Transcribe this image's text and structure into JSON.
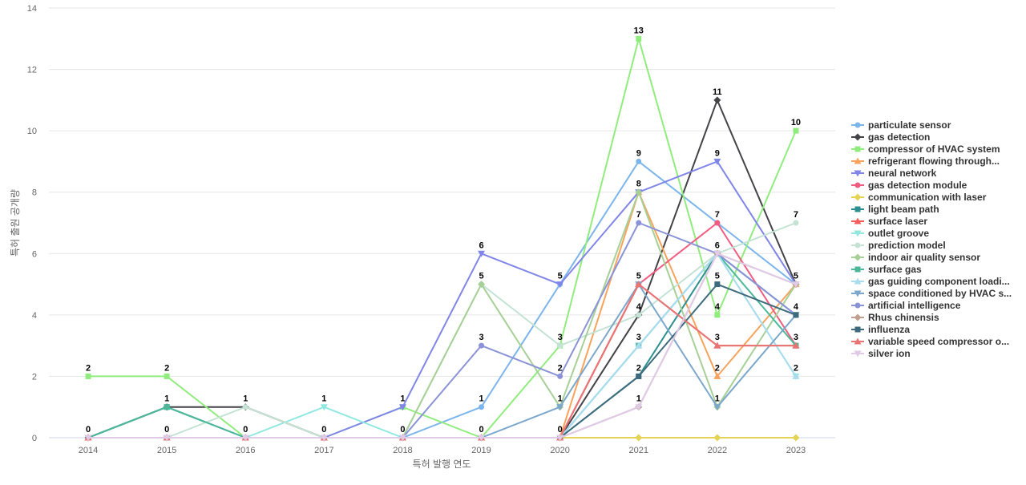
{
  "chart_data": {
    "type": "line",
    "title": "",
    "xlabel": "특허 발행 연도",
    "ylabel": "특허 출원 공개량",
    "ylim": [
      0,
      14
    ],
    "yticks": [
      0,
      2,
      4,
      6,
      8,
      10,
      12,
      14
    ],
    "grid": true,
    "legend_position": "right",
    "categories": [
      "2014",
      "2015",
      "2016",
      "2017",
      "2018",
      "2019",
      "2020",
      "2021",
      "2022",
      "2023"
    ],
    "series": [
      {
        "name": "particulate sensor",
        "color": "#7cb5ec",
        "marker": "circle",
        "values": [
          0,
          0,
          0,
          0,
          0,
          1,
          5,
          9,
          7,
          5
        ]
      },
      {
        "name": "gas detection",
        "color": "#434348",
        "marker": "diamond",
        "values": [
          0,
          1,
          1,
          0,
          0,
          0,
          0,
          4,
          11,
          5
        ]
      },
      {
        "name": "compressor of HVAC system",
        "color": "#90ed7d",
        "marker": "square",
        "values": [
          2,
          2,
          0,
          0,
          1,
          0,
          3,
          13,
          4,
          10
        ]
      },
      {
        "name": "refrigerant flowing through...",
        "color": "#f7a35c",
        "marker": "triangle",
        "values": [
          0,
          0,
          0,
          0,
          0,
          0,
          0,
          8,
          2,
          5
        ]
      },
      {
        "name": "neural network",
        "color": "#8085e9",
        "marker": "triangle-down",
        "values": [
          0,
          0,
          0,
          0,
          1,
          6,
          5,
          8,
          9,
          5
        ]
      },
      {
        "name": "gas detection module",
        "color": "#f15c80",
        "marker": "circle",
        "values": [
          0,
          0,
          0,
          0,
          0,
          0,
          0,
          5,
          7,
          3
        ]
      },
      {
        "name": "communication with laser",
        "color": "#e4d354",
        "marker": "diamond",
        "values": [
          0,
          0,
          0,
          0,
          0,
          0,
          0,
          0,
          0,
          0
        ]
      },
      {
        "name": "light beam path",
        "color": "#2b908f",
        "marker": "square",
        "values": [
          0,
          1,
          0,
          0,
          0,
          0,
          0,
          2,
          6,
          4
        ]
      },
      {
        "name": "surface laser",
        "color": "#f45b5b",
        "marker": "triangle",
        "values": [
          0,
          0,
          0,
          0,
          0,
          0,
          0,
          5,
          3,
          3
        ]
      },
      {
        "name": "outlet groove",
        "color": "#91e8e1",
        "marker": "triangle-down",
        "values": [
          0,
          0,
          0,
          1,
          0,
          0,
          0,
          3,
          6,
          2
        ]
      },
      {
        "name": "prediction model",
        "color": "#c4e3d4",
        "marker": "circle",
        "values": [
          0,
          0,
          1,
          0,
          0,
          5,
          3,
          4,
          6,
          7
        ]
      },
      {
        "name": "indoor air quality sensor",
        "color": "#a6d096",
        "marker": "diamond",
        "values": [
          0,
          0,
          0,
          0,
          0,
          5,
          1,
          8,
          1,
          5
        ]
      },
      {
        "name": "surface gas",
        "color": "#4cb89a",
        "marker": "square",
        "values": [
          0,
          1,
          0,
          0,
          0,
          0,
          0,
          3,
          6,
          3
        ]
      },
      {
        "name": "gas guiding component loadi...",
        "color": "#a9dcef",
        "marker": "triangle",
        "values": [
          0,
          0,
          0,
          0,
          0,
          0,
          0,
          3,
          6,
          2
        ]
      },
      {
        "name": "space conditioned by HVAC s...",
        "color": "#7ba7cc",
        "marker": "triangle-down",
        "values": [
          0,
          0,
          0,
          0,
          0,
          0,
          1,
          5,
          1,
          4
        ]
      },
      {
        "name": "artificial intelligence",
        "color": "#8b93d8",
        "marker": "circle",
        "values": [
          0,
          0,
          0,
          0,
          0,
          3,
          2,
          7,
          6,
          4
        ]
      },
      {
        "name": "Rhus chinensis",
        "color": "#c0a090",
        "marker": "diamond",
        "values": [
          0,
          0,
          0,
          0,
          0,
          0,
          0,
          1,
          6,
          5
        ]
      },
      {
        "name": "influenza",
        "color": "#3d6b7d",
        "marker": "square",
        "values": [
          0,
          0,
          0,
          0,
          0,
          0,
          0,
          2,
          5,
          4
        ]
      },
      {
        "name": "variable speed compressor o...",
        "color": "#e97474",
        "marker": "triangle",
        "values": [
          0,
          0,
          0,
          0,
          0,
          0,
          0,
          5,
          3,
          3
        ]
      },
      {
        "name": "silver ion",
        "color": "#dfcbe8",
        "marker": "triangle-down",
        "values": [
          0,
          0,
          0,
          0,
          0,
          0,
          0,
          1,
          6,
          5
        ]
      }
    ],
    "data_labels": [
      {
        "x": "2014",
        "text": "2",
        "value": 2
      },
      {
        "x": "2014",
        "text": "0",
        "value": 0
      },
      {
        "x": "2015",
        "text": "2",
        "value": 2
      },
      {
        "x": "2015",
        "text": "1",
        "value": 1
      },
      {
        "x": "2015",
        "text": "0",
        "value": 0
      },
      {
        "x": "2016",
        "text": "1",
        "value": 1
      },
      {
        "x": "2016",
        "text": "0",
        "value": 0
      },
      {
        "x": "2017",
        "text": "1",
        "value": 1
      },
      {
        "x": "2017",
        "text": "0",
        "value": 0
      },
      {
        "x": "2018",
        "text": "1",
        "value": 1
      },
      {
        "x": "2018",
        "text": "0",
        "value": 0
      },
      {
        "x": "2019",
        "text": "6",
        "value": 6
      },
      {
        "x": "2019",
        "text": "5",
        "value": 5
      },
      {
        "x": "2019",
        "text": "3",
        "value": 3
      },
      {
        "x": "2019",
        "text": "1",
        "value": 1
      },
      {
        "x": "2019",
        "text": "0",
        "value": 0
      },
      {
        "x": "2020",
        "text": "5",
        "value": 5
      },
      {
        "x": "2020",
        "text": "3",
        "value": 3
      },
      {
        "x": "2020",
        "text": "2",
        "value": 2
      },
      {
        "x": "2020",
        "text": "1",
        "value": 1
      },
      {
        "x": "2020",
        "text": "0",
        "value": 0
      },
      {
        "x": "2021",
        "text": "13",
        "value": 13
      },
      {
        "x": "2021",
        "text": "9",
        "value": 9
      },
      {
        "x": "2021",
        "text": "8",
        "value": 8
      },
      {
        "x": "2021",
        "text": "7",
        "value": 7
      },
      {
        "x": "2021",
        "text": "5",
        "value": 5
      },
      {
        "x": "2021",
        "text": "4",
        "value": 4
      },
      {
        "x": "2021",
        "text": "3",
        "value": 3
      },
      {
        "x": "2021",
        "text": "2",
        "value": 2
      },
      {
        "x": "2021",
        "text": "1",
        "value": 1
      },
      {
        "x": "2022",
        "text": "11",
        "value": 11
      },
      {
        "x": "2022",
        "text": "9",
        "value": 9
      },
      {
        "x": "2022",
        "text": "7",
        "value": 7
      },
      {
        "x": "2022",
        "text": "6",
        "value": 6
      },
      {
        "x": "2022",
        "text": "5",
        "value": 5
      },
      {
        "x": "2022",
        "text": "4",
        "value": 4
      },
      {
        "x": "2022",
        "text": "3",
        "value": 3
      },
      {
        "x": "2022",
        "text": "2",
        "value": 2
      },
      {
        "x": "2022",
        "text": "1",
        "value": 1
      },
      {
        "x": "2023",
        "text": "10",
        "value": 10
      },
      {
        "x": "2023",
        "text": "7",
        "value": 7
      },
      {
        "x": "2023",
        "text": "5",
        "value": 5
      },
      {
        "x": "2023",
        "text": "4",
        "value": 4
      },
      {
        "x": "2023",
        "text": "3",
        "value": 3
      },
      {
        "x": "2023",
        "text": "2",
        "value": 2
      }
    ]
  }
}
